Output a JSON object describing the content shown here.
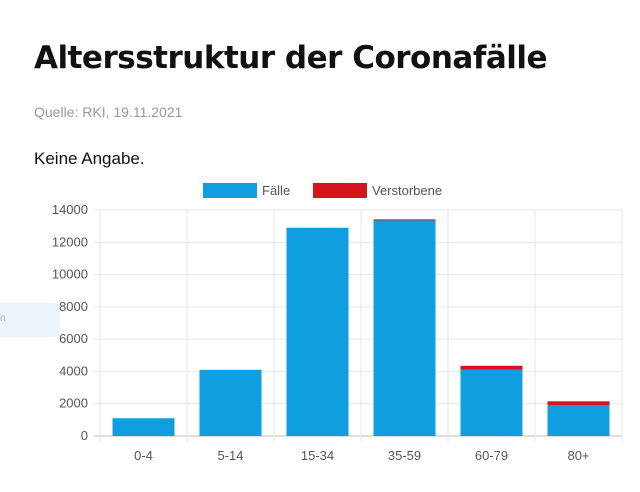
{
  "header": {
    "title": "Altersstruktur der Coronafälle",
    "source": "Quelle: RKI, 19.11.2021",
    "note": "Keine Angabe."
  },
  "side_tab": {
    "glyph": "n"
  },
  "chart_data": {
    "type": "bar",
    "stacked": true,
    "categories": [
      "0-4",
      "5-14",
      "15-34",
      "35-59",
      "60-79",
      "80+"
    ],
    "series": [
      {
        "name": "Fälle",
        "color": "#0f9fe0",
        "values": [
          1100,
          4100,
          12900,
          13400,
          4100,
          1900
        ]
      },
      {
        "name": "Verstorbene",
        "color": "#d6141c",
        "values": [
          0,
          0,
          0,
          20,
          250,
          250
        ]
      }
    ],
    "ylim": [
      0,
      14000
    ],
    "yticks": [
      "0",
      "2000",
      "4000",
      "6000",
      "8000",
      "10000",
      "12000",
      "14000"
    ],
    "legend_position": "top",
    "grid": true
  }
}
